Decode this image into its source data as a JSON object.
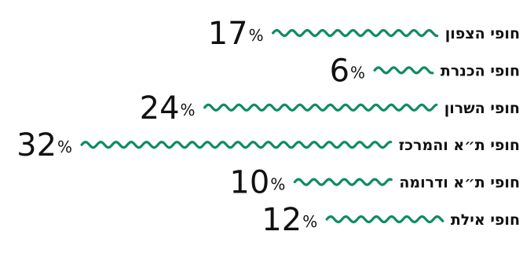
{
  "chart_data": {
    "type": "bar",
    "title": "",
    "xlabel": "",
    "ylabel": "",
    "categories": [
      "חופי הצפון",
      "חופי הכנרת",
      "חופי השרון",
      "חופי ת״א והמרכז",
      "חופי ת״א ודרומה",
      "חופי אילת"
    ],
    "values": [
      17,
      6,
      24,
      32,
      10,
      12
    ],
    "value_suffix": "%",
    "xlim": [
      0,
      32
    ],
    "bar_style": "wavy-line",
    "bar_color": "#0f8c62",
    "grid": false,
    "legend": "none"
  }
}
